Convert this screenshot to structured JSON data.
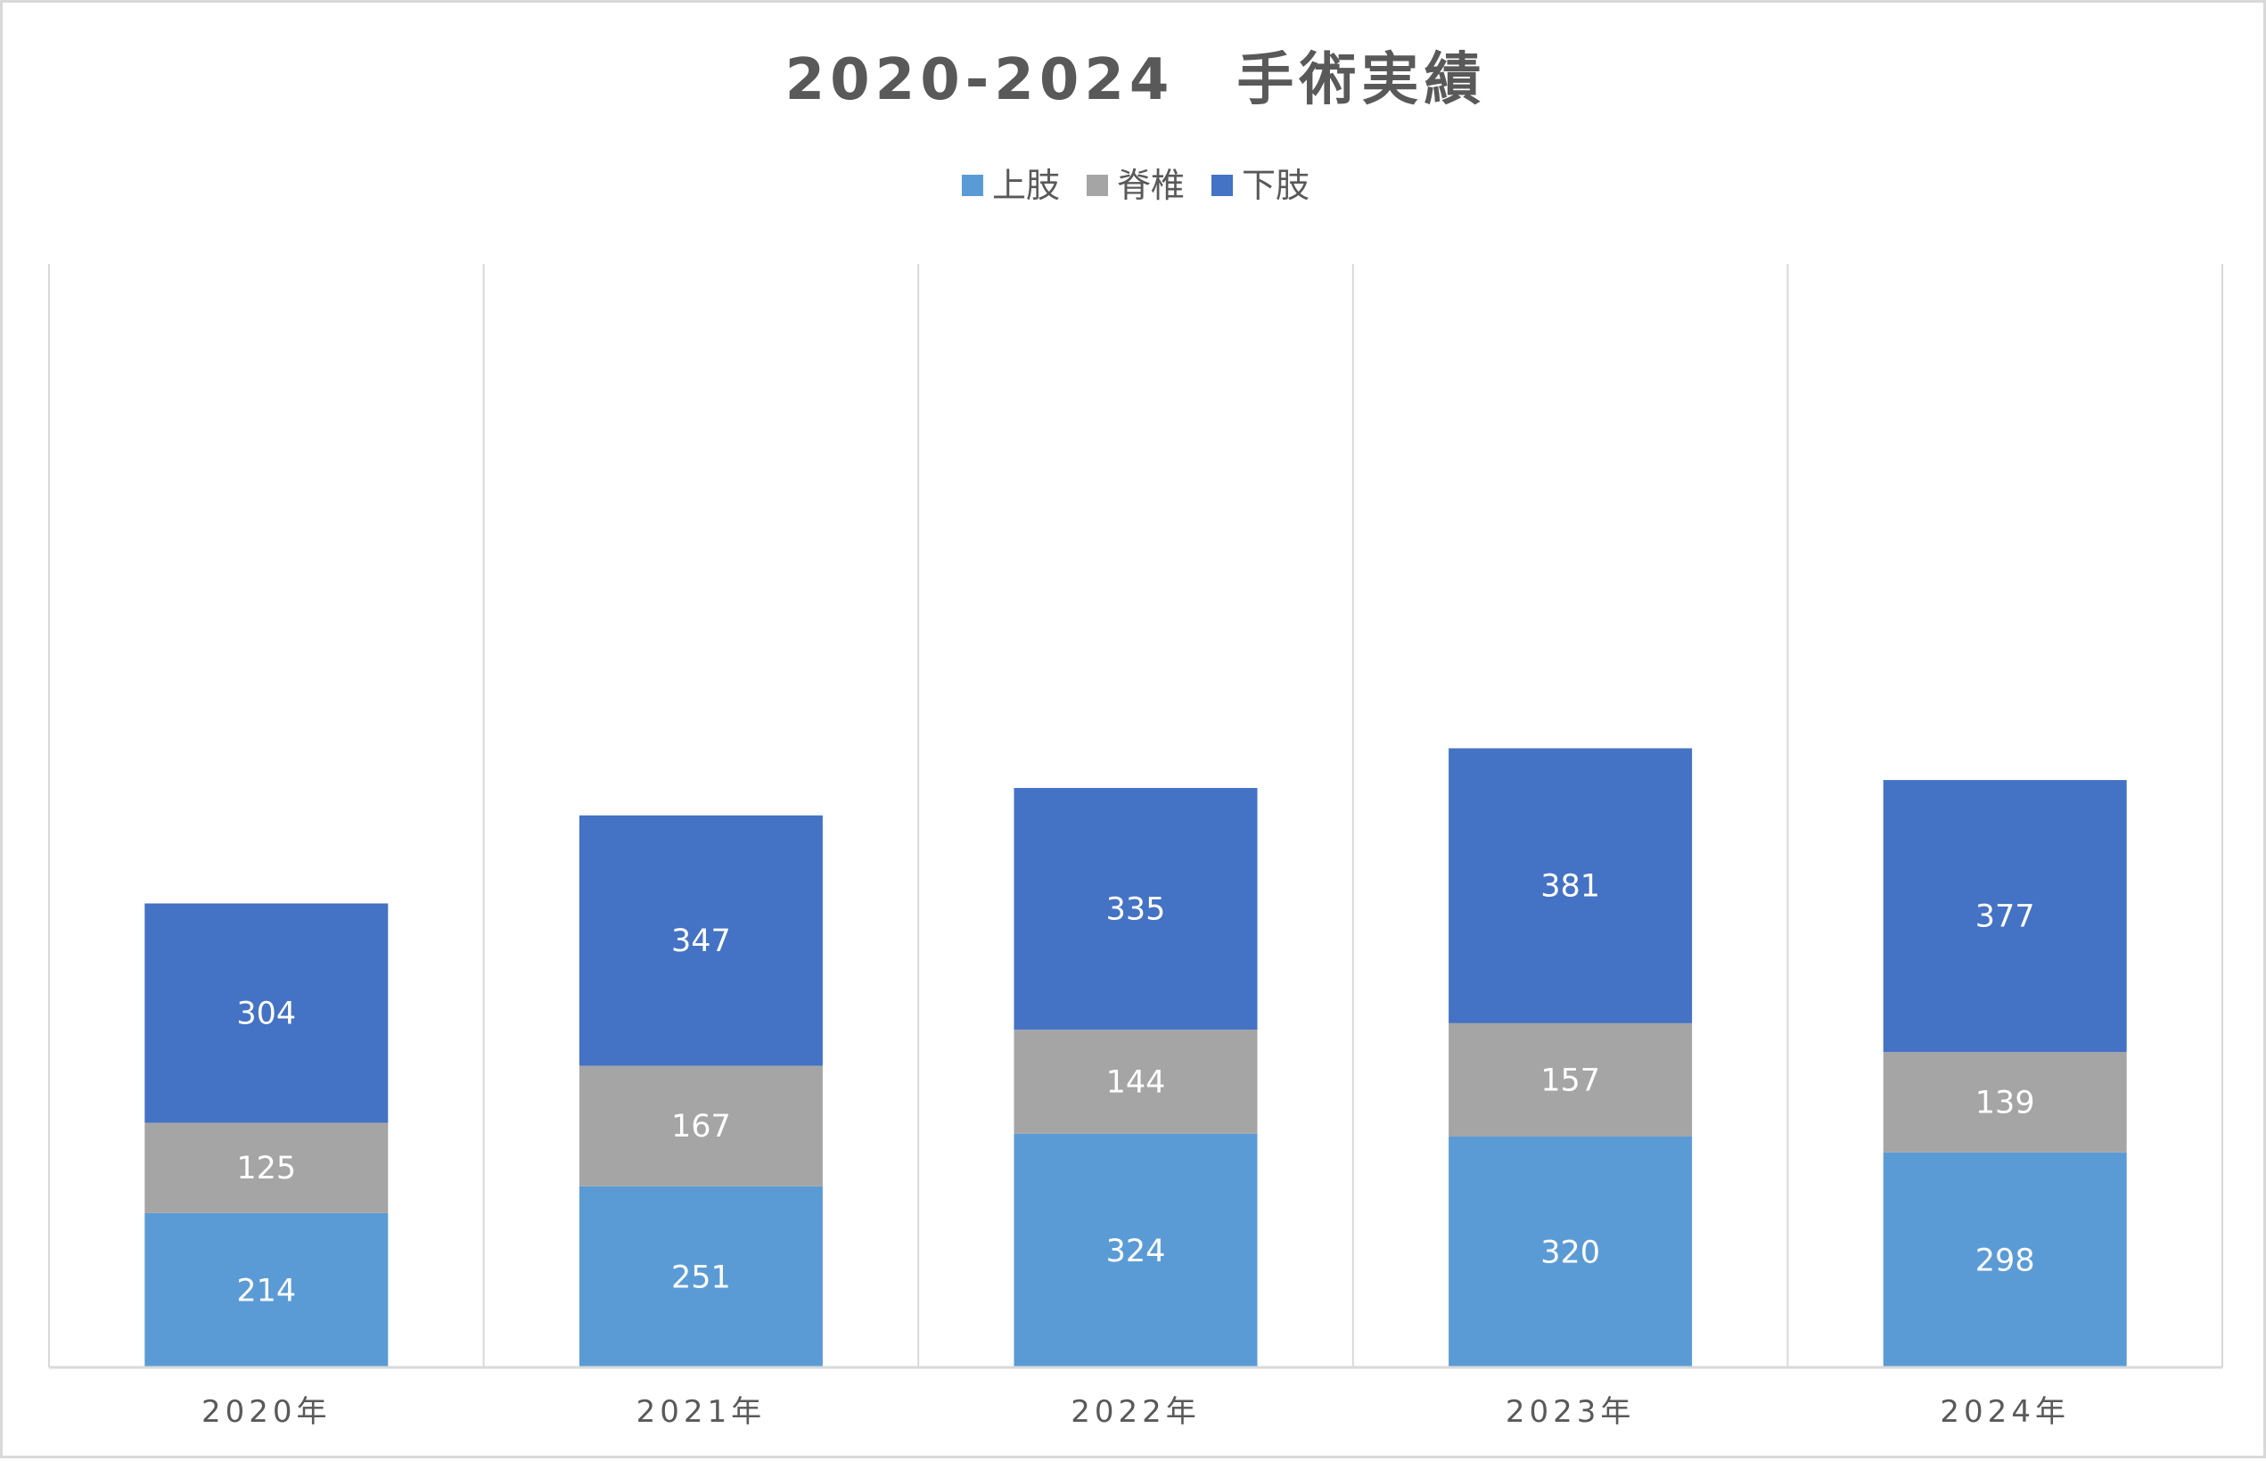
{
  "chart_data": {
    "type": "bar",
    "stacked": true,
    "title": "2020-2024　手術実績",
    "categories": [
      "2020年",
      "2021年",
      "2022年",
      "2023年",
      "2024年"
    ],
    "series": [
      {
        "name": "上肢",
        "color": "#5b9bd5",
        "values": [
          214,
          251,
          324,
          320,
          298
        ]
      },
      {
        "name": "脊椎",
        "color": "#a5a5a5",
        "values": [
          125,
          167,
          144,
          157,
          139
        ]
      },
      {
        "name": "下肢",
        "color": "#4472c4",
        "values": [
          304,
          347,
          335,
          381,
          377
        ]
      }
    ],
    "ylim": [
      0,
      1000
    ],
    "grid": "vertical-category-separators",
    "legend": "top-center",
    "data_labels": true
  }
}
